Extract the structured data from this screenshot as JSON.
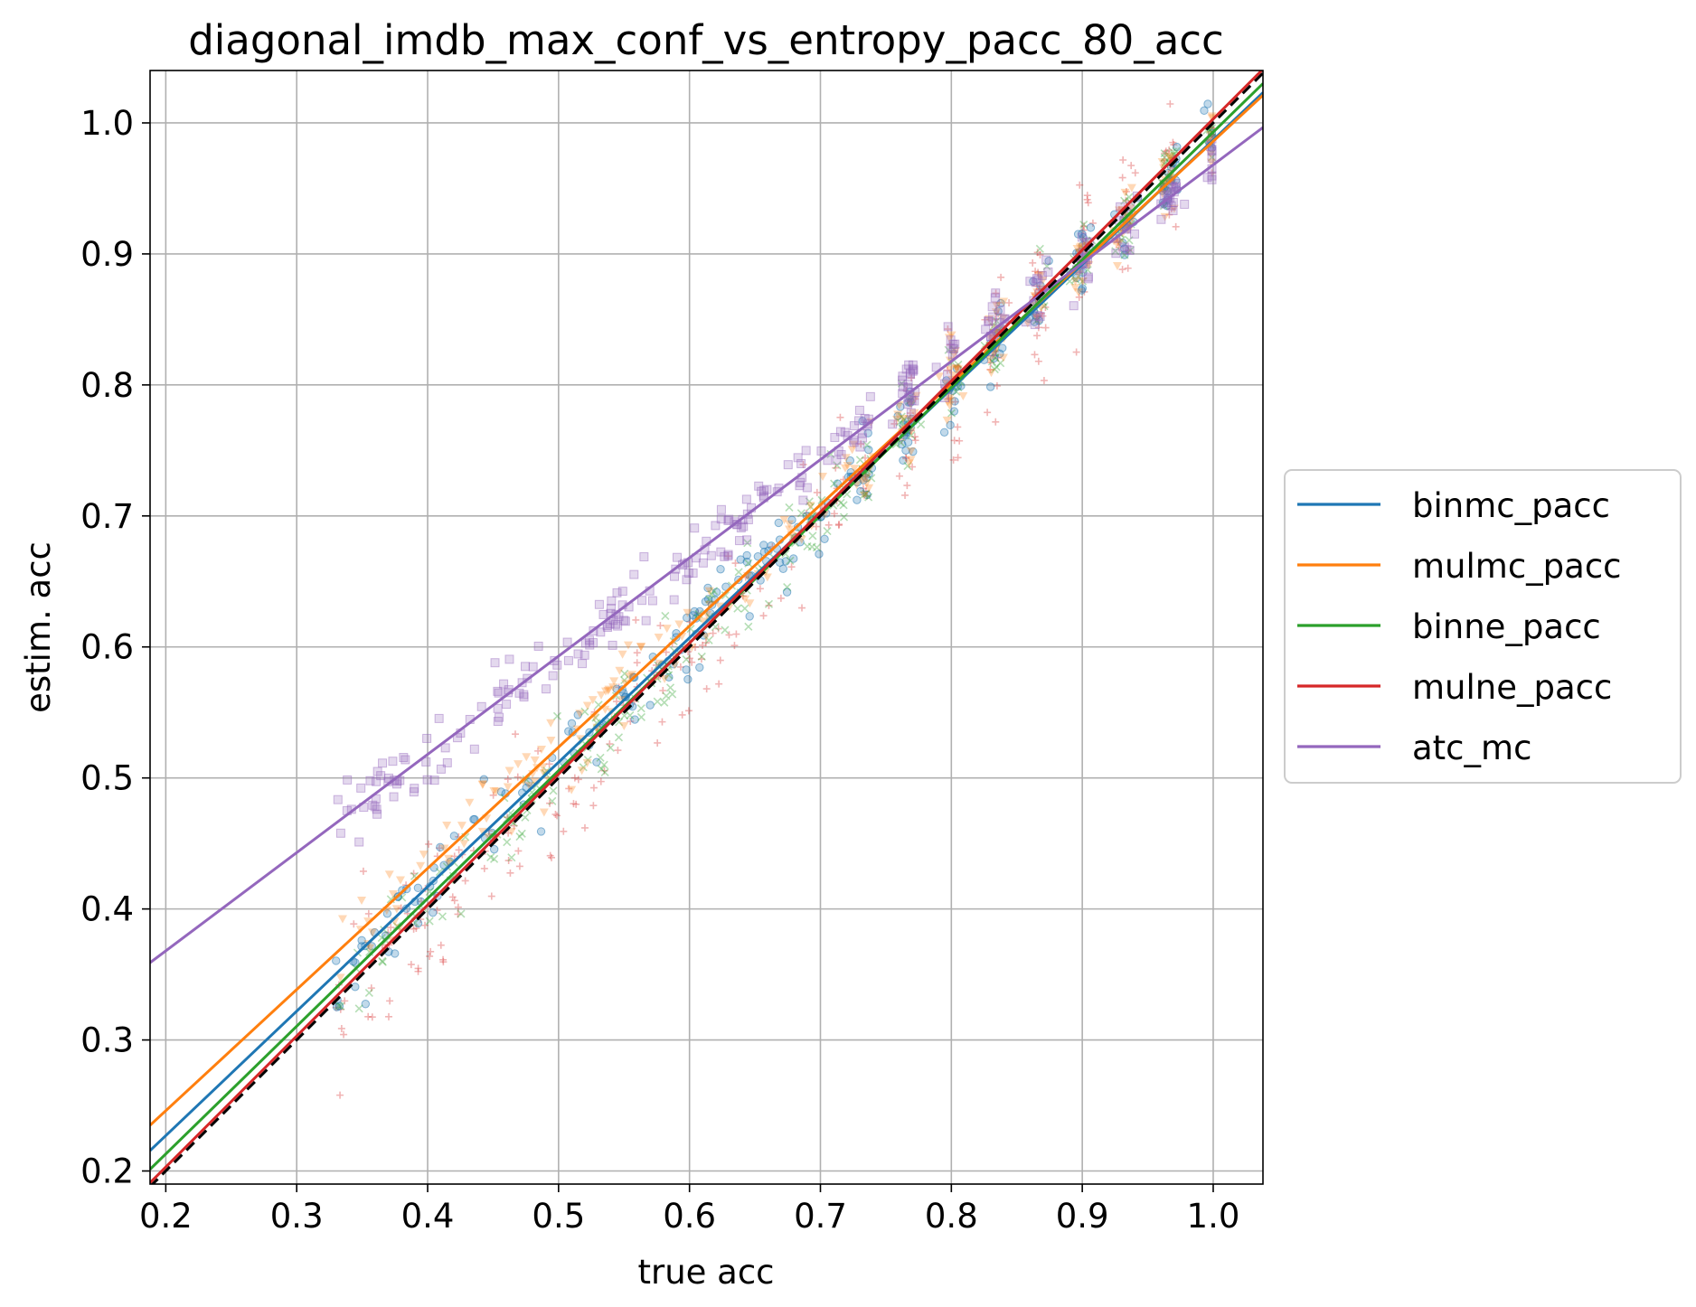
{
  "chart_data": {
    "type": "scatter",
    "title": "diagonal_imdb_max_conf_vs_entropy_pacc_80_acc",
    "xlabel": "true acc",
    "ylabel": "estim. acc",
    "xlim": [
      0.188,
      1.038
    ],
    "ylim": [
      0.19,
      1.04
    ],
    "xticks": [
      "0.2",
      "0.3",
      "0.4",
      "0.5",
      "0.6",
      "0.7",
      "0.8",
      "0.9",
      "1.0"
    ],
    "yticks": [
      "0.2",
      "0.3",
      "0.4",
      "0.5",
      "0.6",
      "0.7",
      "0.8",
      "0.9",
      "1.0"
    ],
    "grid": true,
    "legend_position": "outside-right",
    "reference_line": {
      "style": "dashed",
      "color": "#000000",
      "slope": 1,
      "intercept": 0
    },
    "point_cloud": {
      "x_range": [
        0.33,
        1.0
      ],
      "description_groups": "clustered samples along true acc"
    },
    "series": [
      {
        "name": "binmc_pacc",
        "color": "#1f77b4",
        "marker": "circle",
        "fit": {
          "slope": 0.95,
          "intercept": 0.037
        }
      },
      {
        "name": "mulmc_pacc",
        "color": "#ff7f0e",
        "marker": "triangle",
        "fit": {
          "slope": 0.925,
          "intercept": 0.061
        }
      },
      {
        "name": "binne_pacc",
        "color": "#2ca02c",
        "marker": "x",
        "fit": {
          "slope": 0.975,
          "intercept": 0.018
        }
      },
      {
        "name": "mulne_pacc",
        "color": "#d62728",
        "marker": "plus",
        "fit": {
          "slope": 1.0,
          "intercept": 0.003
        }
      },
      {
        "name": "atc_mc",
        "color": "#9467bd",
        "marker": "square",
        "fit": {
          "slope": 0.75,
          "intercept": 0.218
        }
      }
    ]
  }
}
